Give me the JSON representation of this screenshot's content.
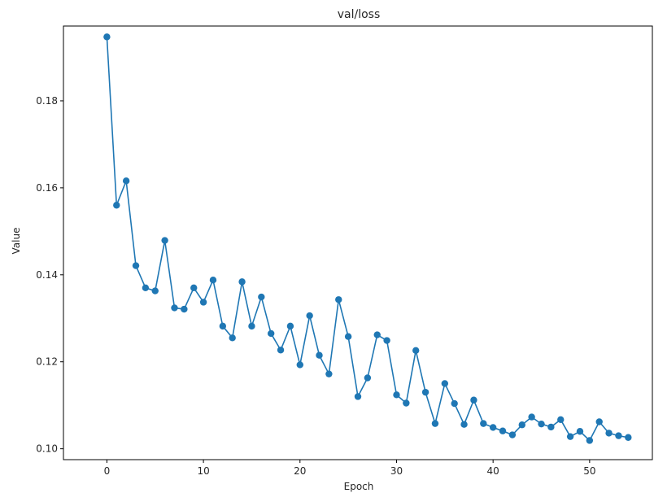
{
  "chart_data": {
    "type": "line",
    "title": "val/loss",
    "xlabel": "Epoch",
    "ylabel": "Value",
    "xlim": [
      -4.5,
      56.5
    ],
    "ylim": [
      0.0975,
      0.1972
    ],
    "xticks": [
      0,
      10,
      20,
      30,
      40,
      50
    ],
    "yticks": [
      0.1,
      0.12,
      0.14,
      0.16,
      0.18
    ],
    "ytick_labels": [
      "0.10",
      "0.12",
      "0.14",
      "0.16",
      "0.18"
    ],
    "grid": false,
    "line_color": "#1f77b4",
    "marker": "circle",
    "series": [
      {
        "x": [
          0,
          1,
          2,
          3,
          4,
          5,
          6,
          7,
          8,
          9,
          10,
          11,
          12,
          13,
          14,
          15,
          16,
          17,
          18,
          19,
          20,
          21,
          22,
          23,
          24,
          25,
          26,
          27,
          28,
          29,
          30,
          31,
          32,
          33,
          34,
          35,
          36,
          37,
          38,
          39,
          40,
          41,
          42,
          43,
          44,
          45,
          46,
          47,
          48,
          49,
          50,
          51,
          52,
          53,
          54
        ],
        "values": [
          0.1947,
          0.156,
          0.1616,
          0.1421,
          0.137,
          0.1363,
          0.1479,
          0.1324,
          0.1321,
          0.137,
          0.1337,
          0.1388,
          0.1282,
          0.1255,
          0.1384,
          0.1282,
          0.1349,
          0.1265,
          0.1227,
          0.1282,
          0.1193,
          0.1306,
          0.1215,
          0.1172,
          0.1343,
          0.1258,
          0.112,
          0.1163,
          0.1262,
          0.1249,
          0.1124,
          0.1105,
          0.1226,
          0.113,
          0.1058,
          0.115,
          0.1104,
          0.1056,
          0.1112,
          0.1058,
          0.1049,
          0.1041,
          0.1032,
          0.1055,
          0.1073,
          0.1057,
          0.105,
          0.1067,
          0.1028,
          0.104,
          0.1019,
          0.1062,
          0.1036,
          0.103,
          0.1026
        ]
      }
    ]
  }
}
